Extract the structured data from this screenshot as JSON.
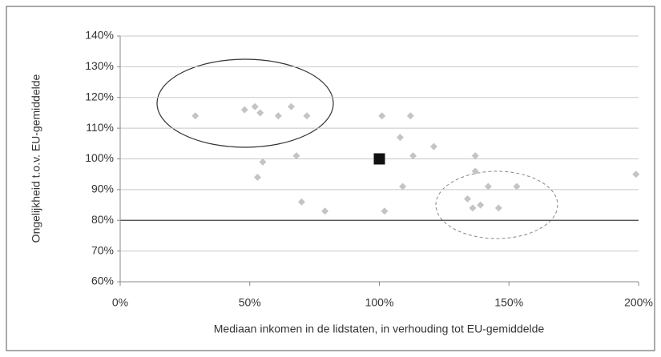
{
  "chart_data": {
    "type": "scatter",
    "xlabel": "Mediaan inkomen in de lidstaten, in verhouding tot EU-gemiddelde",
    "ylabel": "Ongelijkheid t.o.v. EU-gemiddelde",
    "x": [
      29,
      48,
      52,
      54,
      61,
      66,
      72,
      55,
      53,
      68,
      70,
      79,
      101,
      112,
      108,
      113,
      121,
      109,
      102,
      137,
      137,
      142,
      134,
      136,
      139,
      146,
      153,
      199
    ],
    "values": [
      114,
      116,
      117,
      115,
      114,
      117,
      114,
      99,
      94,
      101,
      86,
      83,
      114,
      114,
      107,
      101,
      104,
      91,
      83,
      101,
      96,
      91,
      87,
      84,
      85,
      84,
      91,
      95
    ],
    "color": "#c4c4c4",
    "highlight": {
      "x": 100,
      "y": 100,
      "color": "#111111"
    },
    "reference_line": 80,
    "xlim": [
      0,
      200
    ],
    "xticks": [
      {
        "value": 0,
        "label": "0%"
      },
      {
        "value": 50,
        "label": "50%"
      },
      {
        "value": 100,
        "label": "100%"
      },
      {
        "value": 150,
        "label": "150%"
      },
      {
        "value": 200,
        "label": "200%"
      }
    ],
    "ylim": [
      60,
      140
    ],
    "yticks": [
      {
        "value": 60,
        "label": "60%"
      },
      {
        "value": 70,
        "label": "70%"
      },
      {
        "value": 80,
        "label": "80%"
      },
      {
        "value": 90,
        "label": "90%"
      },
      {
        "value": 100,
        "label": "100%"
      },
      {
        "value": 110,
        "label": "110%"
      },
      {
        "value": 120,
        "label": "120%"
      },
      {
        "value": 130,
        "label": "130%"
      },
      {
        "value": 140,
        "label": "140%"
      }
    ],
    "grid": true
  }
}
